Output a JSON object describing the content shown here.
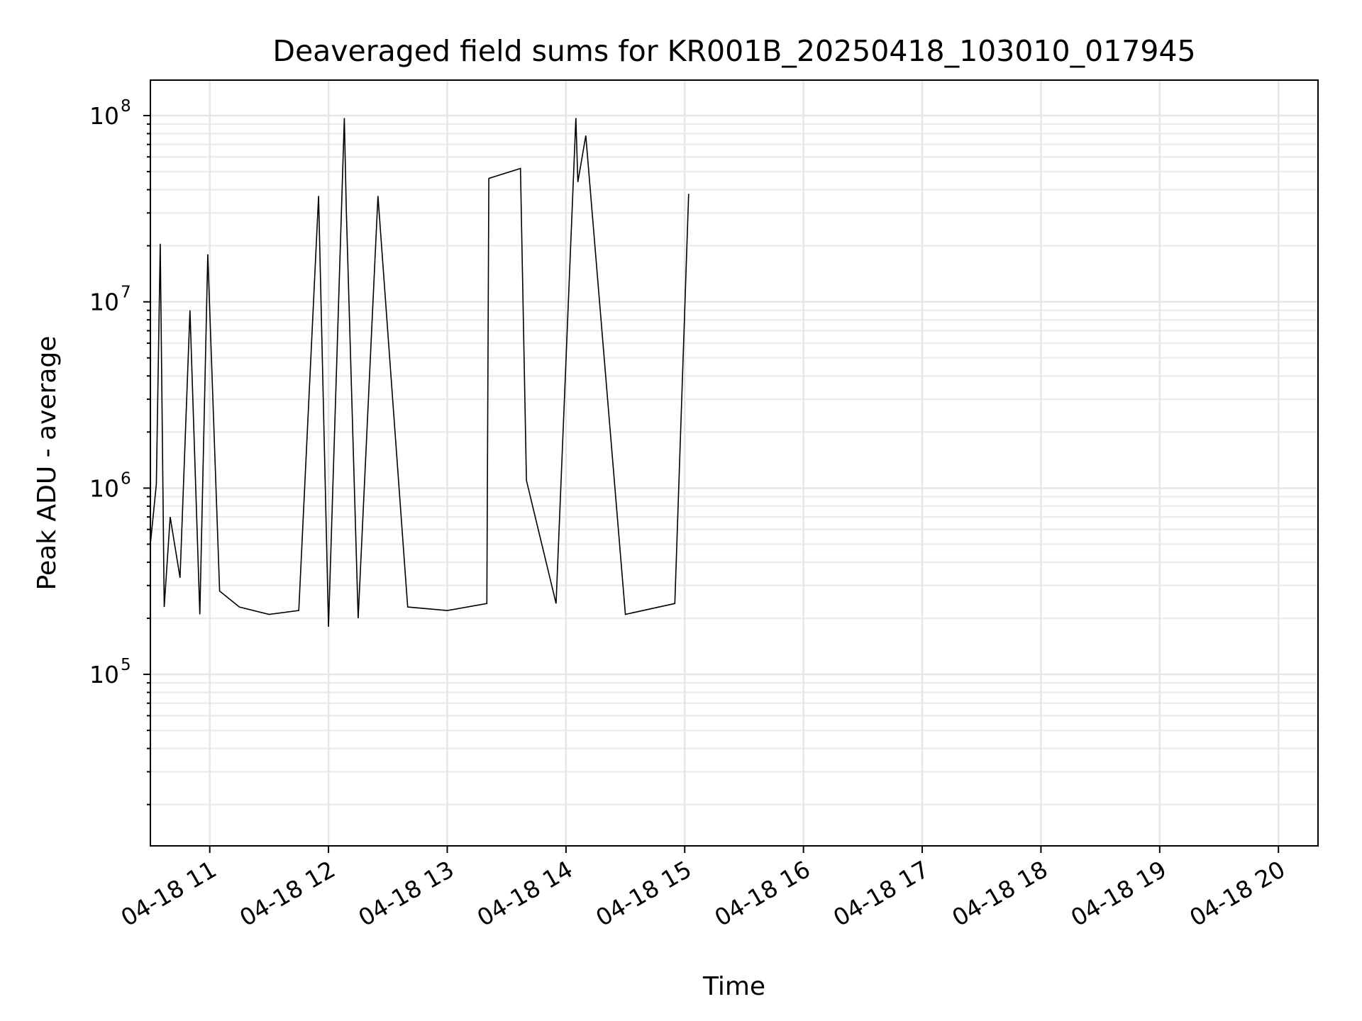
{
  "chart_data": {
    "type": "line",
    "title": "Deaveraged field sums for KR001B_20250418_103010_017945",
    "xlabel": "Time",
    "ylabel": "Peak ADU - average",
    "x_ticks": [
      "04-18 11",
      "04-18 12",
      "04-18 13",
      "04-18 14",
      "04-18 15",
      "04-18 16",
      "04-18 17",
      "04-18 18",
      "04-18 19",
      "04-18 20"
    ],
    "y_scale": "log",
    "y_ticks": [
      {
        "base": "10",
        "exp": "5",
        "value": 100000
      },
      {
        "base": "10",
        "exp": "6",
        "value": 1000000
      },
      {
        "base": "10",
        "exp": "7",
        "value": 10000000
      },
      {
        "base": "10",
        "exp": "8",
        "value": 100000000
      }
    ],
    "xlim": [
      "2025-04-18 10:30",
      "2025-04-18 20:20"
    ],
    "ylim": [
      12000,
      155000000
    ],
    "grid": true,
    "line_color": "#000000",
    "series": [
      {
        "values": [
          [
            "2025-04-18 10:30",
            500000
          ],
          [
            "2025-04-18 10:33",
            1050000
          ],
          [
            "2025-04-18 10:35",
            20500000
          ],
          [
            "2025-04-18 10:37",
            230000
          ],
          [
            "2025-04-18 10:40",
            700000
          ],
          [
            "2025-04-18 10:45",
            330000
          ],
          [
            "2025-04-18 10:50",
            9000000
          ],
          [
            "2025-04-18 10:55",
            210000
          ],
          [
            "2025-04-18 10:59",
            18000000
          ],
          [
            "2025-04-18 11:05",
            280000
          ],
          [
            "2025-04-18 11:15",
            230000
          ],
          [
            "2025-04-18 11:30",
            210000
          ],
          [
            "2025-04-18 11:45",
            220000
          ],
          [
            "2025-04-18 11:55",
            37000000
          ],
          [
            "2025-04-18 12:00",
            180000
          ],
          [
            "2025-04-18 12:08",
            97000000
          ],
          [
            "2025-04-18 12:09",
            31000000
          ],
          [
            "2025-04-18 12:15",
            200000
          ],
          [
            "2025-04-18 12:25",
            37000000
          ],
          [
            "2025-04-18 12:40",
            230000
          ],
          [
            "2025-04-18 13:00",
            220000
          ],
          [
            "2025-04-18 13:20",
            240000
          ],
          [
            "2025-04-18 13:21",
            46000000
          ],
          [
            "2025-04-18 13:37",
            52000000
          ],
          [
            "2025-04-18 13:40",
            1100000
          ],
          [
            "2025-04-18 13:55",
            240000
          ],
          [
            "2025-04-18 14:05",
            97000000
          ],
          [
            "2025-04-18 14:06",
            44000000
          ],
          [
            "2025-04-18 14:10",
            78000000
          ],
          [
            "2025-04-18 14:30",
            210000
          ],
          [
            "2025-04-18 14:55",
            240000
          ],
          [
            "2025-04-18 15:02",
            38000000
          ]
        ]
      }
    ]
  }
}
